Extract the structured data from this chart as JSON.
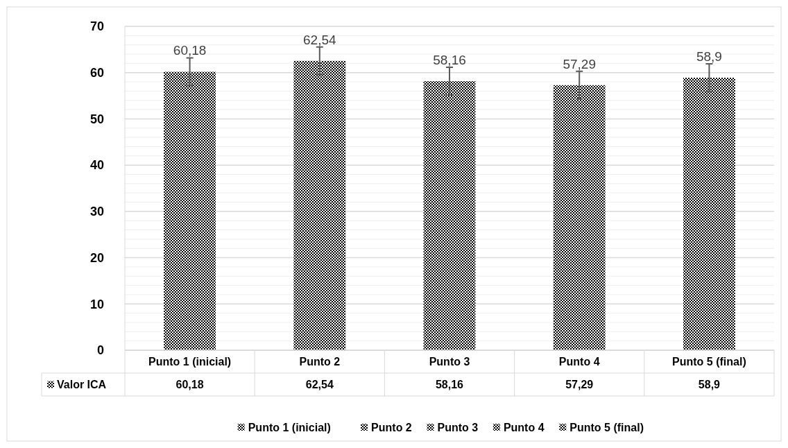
{
  "chart_data": {
    "type": "bar",
    "categories": [
      "Punto 1 (inicial)",
      "Punto 2",
      "Punto 3",
      "Punto 4",
      "Punto 5 (final)"
    ],
    "series": [
      {
        "name": "Valor ICA",
        "color": "#000000",
        "values": [
          60.18,
          62.54,
          58.16,
          57.29,
          58.9
        ],
        "errors": [
          3,
          3,
          3,
          3,
          3
        ],
        "value_labels": [
          "60,18",
          "62,54",
          "58,16",
          "57,29",
          "58,9"
        ]
      }
    ],
    "ylim": [
      0,
      70
    ],
    "yticks": [
      0,
      10,
      20,
      30,
      40,
      50,
      60,
      70
    ],
    "grid": "y",
    "legend": "bottom"
  }
}
